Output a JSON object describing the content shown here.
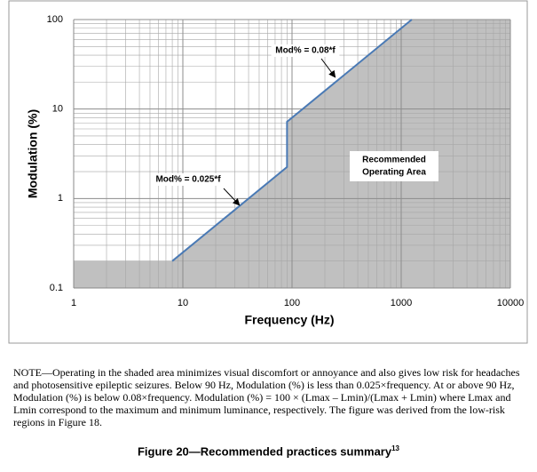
{
  "chart_data": {
    "type": "line",
    "xlabel": "Frequency (Hz)",
    "ylabel": "Modulation (%)",
    "xscale": "log",
    "yscale": "log",
    "xlim": [
      1,
      10000
    ],
    "ylim": [
      0.1,
      100
    ],
    "xticks": [
      1,
      10,
      100,
      1000,
      10000
    ],
    "yticks": [
      0.1,
      1,
      10,
      100
    ],
    "grid": true,
    "shaded_area": {
      "color": "#c0c0c0",
      "x": [
        1,
        8,
        90,
        90,
        1250,
        10000
      ],
      "values": [
        0.2,
        0.2,
        2.25,
        7.2,
        100,
        100
      ]
    },
    "series": [
      {
        "color": "#4a7ab5",
        "x": [
          8,
          90,
          90,
          1250
        ],
        "values": [
          0.2,
          2.25,
          7.2,
          100
        ]
      }
    ],
    "annotations": [
      {
        "text": "Mod% = 0.08*f"
      },
      {
        "text": "Mod% = 0.025*f"
      },
      {
        "lines": [
          "Recommended",
          "Operating Area"
        ]
      }
    ]
  },
  "note": "NOTE—Operating in the shaded area minimizes visual discomfort or annoyance and also gives low risk for headaches and photosensitive epileptic seizures. Below 90 Hz, Modulation (%) is less than 0.025×frequency. At or above 90 Hz, Modulation (%) is below 0.08×frequency. Modulation (%) = 100 × (Lmax – Lmin)/(Lmax + Lmin) where Lmax and Lmin correspond to the maximum and minimum luminance, respectively. The figure was derived from the low-risk regions in Figure 18.",
  "caption": "Figure 20—Recommended practices summary",
  "footnote_ref": "13"
}
